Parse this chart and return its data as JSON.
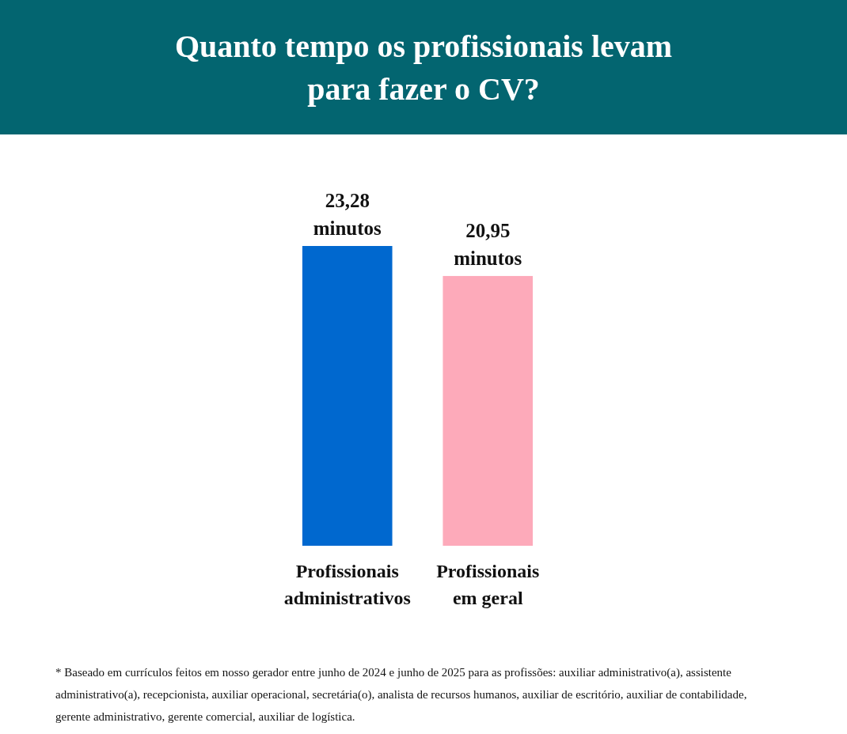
{
  "chart_data": {
    "type": "bar",
    "title": "Quanto tempo os profissionais levam para fazer o CV?",
    "categories": [
      "Profissionais administrativos",
      "Profissionais em geral"
    ],
    "values": [
      23.28,
      20.95
    ],
    "colors": [
      "#0068cf",
      "#fdaaba"
    ],
    "relative": false,
    "value_labels": [
      "23,28 minutos",
      "20,95 minutos"
    ],
    "annotations": [
      "* Baseado em currículos feitos em nosso gerador entre junho de 2024 e junho de 2025 para as profissões: auxiliar administrativo(a), assistente administrativo(a), recepcionista, auxiliar operacional, secretária(o), analista de recursos humanos, auxiliar de escritório, auxiliar de contabilidade, gerente administrativo, gerente comercial, auxiliar de logística."
    ]
  }
}
